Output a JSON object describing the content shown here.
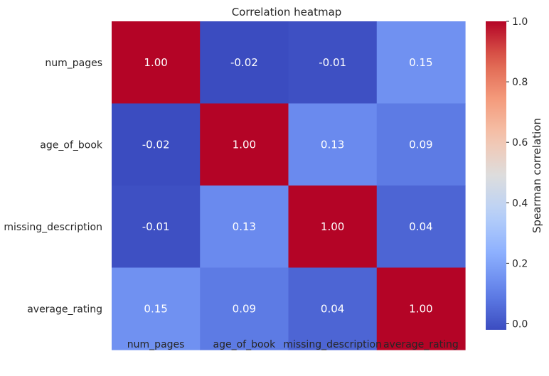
{
  "chart_data": {
    "type": "heatmap",
    "title": "Correlation heatmap",
    "rows": [
      "num_pages",
      "age_of_book",
      "missing_description",
      "average_rating"
    ],
    "columns": [
      "num_pages",
      "age_of_book",
      "missing_description",
      "average_rating"
    ],
    "values": [
      [
        1.0,
        -0.02,
        -0.01,
        0.15
      ],
      [
        -0.02,
        1.0,
        0.13,
        0.09
      ],
      [
        -0.01,
        0.13,
        1.0,
        0.04
      ],
      [
        0.15,
        0.09,
        0.04,
        1.0
      ]
    ],
    "labels": [
      [
        "1.00",
        "-0.02",
        "-0.01",
        "0.15"
      ],
      [
        "-0.02",
        "1.00",
        "0.13",
        "0.09"
      ],
      [
        "-0.01",
        "0.13",
        "1.00",
        "0.04"
      ],
      [
        "0.15",
        "0.09",
        "0.04",
        "1.00"
      ]
    ],
    "colormap": "coolwarm",
    "colorbar": {
      "label": "Spearman correlation",
      "vmin": -0.02,
      "vmax": 1.0,
      "ticks": [
        0.0,
        0.2,
        0.4,
        0.6,
        0.8,
        1.0
      ],
      "tick_labels": [
        "0.0",
        "0.2",
        "0.4",
        "0.6",
        "0.8",
        "1.0"
      ]
    }
  }
}
